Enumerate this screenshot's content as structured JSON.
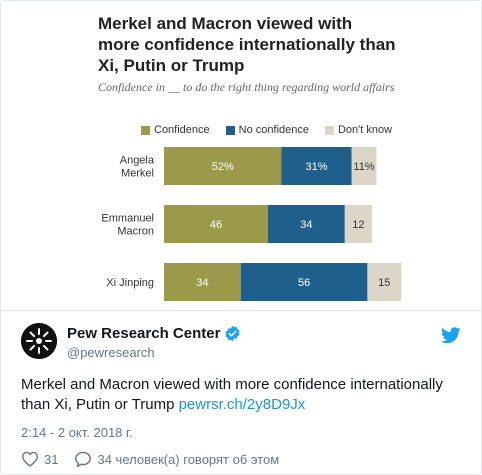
{
  "tweet": {
    "author_name": "Pew Research Center",
    "author_handle": "@pewresearch",
    "text": "Merkel and Macron viewed with more confidence internationally than Xi, Putin or Trump ",
    "link_text": "pewrsr.ch/2y8D9Jx",
    "timestamp": "2:14 - 2 окт. 2018 г.",
    "likes_count": "31",
    "replies_label": "34 человек(а) говорят об этом"
  },
  "icons": {
    "verified": "verified-badge-icon",
    "bird": "twitter-bird-icon",
    "like": "heart-icon",
    "reply": "speech-bubble-icon",
    "avatar": "pew-logo"
  },
  "colors": {
    "confidence": "#9a9a4a",
    "no_confidence": "#1f5f8b",
    "dont_know": "#dbd6c8",
    "link": "#1b95e0",
    "verified": "#1da1f2"
  },
  "chart_data": {
    "type": "bar",
    "orientation": "horizontal",
    "stacked": true,
    "title": "Merkel and Macron viewed with more confidence internationally than Xi, Putin or Trump",
    "subtitle": "Confidence in __ to do the right thing regarding world affairs",
    "legend_placement": "top",
    "categories": [
      "Angela Merkel",
      "Emmanuel Macron",
      "Xi Jinping"
    ],
    "series": [
      {
        "name": "Confidence",
        "values": [
          52,
          46,
          34
        ],
        "labels": [
          "52%",
          "46",
          "34"
        ]
      },
      {
        "name": "No confidence",
        "values": [
          31,
          34,
          56
        ],
        "labels": [
          "31%",
          "34",
          "56"
        ]
      },
      {
        "name": "Don't know",
        "values": [
          11,
          12,
          15
        ],
        "labels": [
          "11%",
          "12",
          "15"
        ]
      }
    ]
  }
}
